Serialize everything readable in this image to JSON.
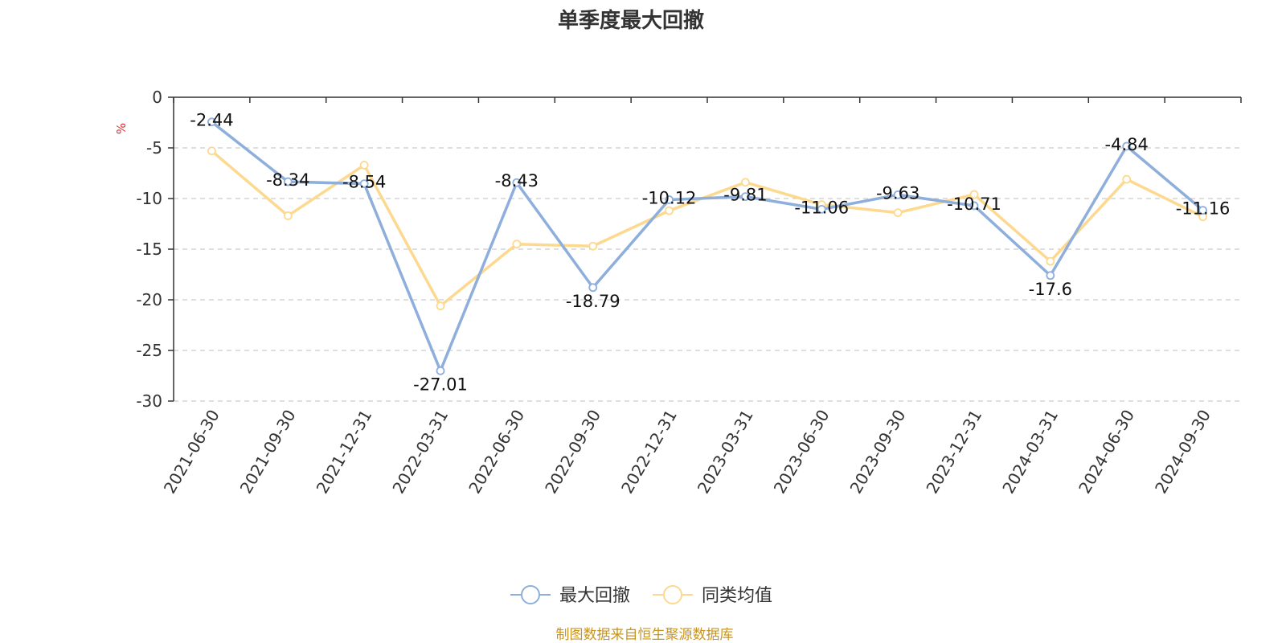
{
  "chart_data": {
    "type": "line",
    "title": "单季度最大回撤",
    "ylabel": "%",
    "ylim": [
      -30,
      0
    ],
    "yticks": [
      0,
      -5,
      -10,
      -15,
      -20,
      -25,
      -30
    ],
    "grid": true,
    "legend_position": "bottom-center",
    "categories": [
      "2021-06-30",
      "2021-09-30",
      "2021-12-31",
      "2022-03-31",
      "2022-06-30",
      "2022-09-30",
      "2022-12-31",
      "2023-03-31",
      "2023-06-30",
      "2023-09-30",
      "2023-12-31",
      "2024-03-31",
      "2024-06-30",
      "2024-09-30"
    ],
    "series": [
      {
        "name": "最大回撤",
        "color": "#8eaedb",
        "values": [
          -2.44,
          -8.34,
          -8.54,
          -27.01,
          -8.43,
          -18.79,
          -10.12,
          -9.81,
          -11.06,
          -9.63,
          -10.71,
          -17.6,
          -4.84,
          -11.16
        ],
        "labels": [
          "-2.44",
          "-8.34",
          "-8.54",
          "-27.01",
          "-8.43",
          "-18.79",
          "-10.12",
          "-9.81",
          "-11.06",
          "-9.63",
          "-10.71",
          "-17.6",
          "-4.84",
          "-11.16"
        ]
      },
      {
        "name": "同类均值",
        "color": "#fcd98e",
        "values": [
          -5.3,
          -11.7,
          -6.7,
          -20.6,
          -14.5,
          -14.7,
          -11.2,
          -8.4,
          -10.6,
          -11.4,
          -9.6,
          -16.2,
          -8.1,
          -11.8
        ]
      }
    ]
  },
  "source": "制图数据来自恒生聚源数据库"
}
